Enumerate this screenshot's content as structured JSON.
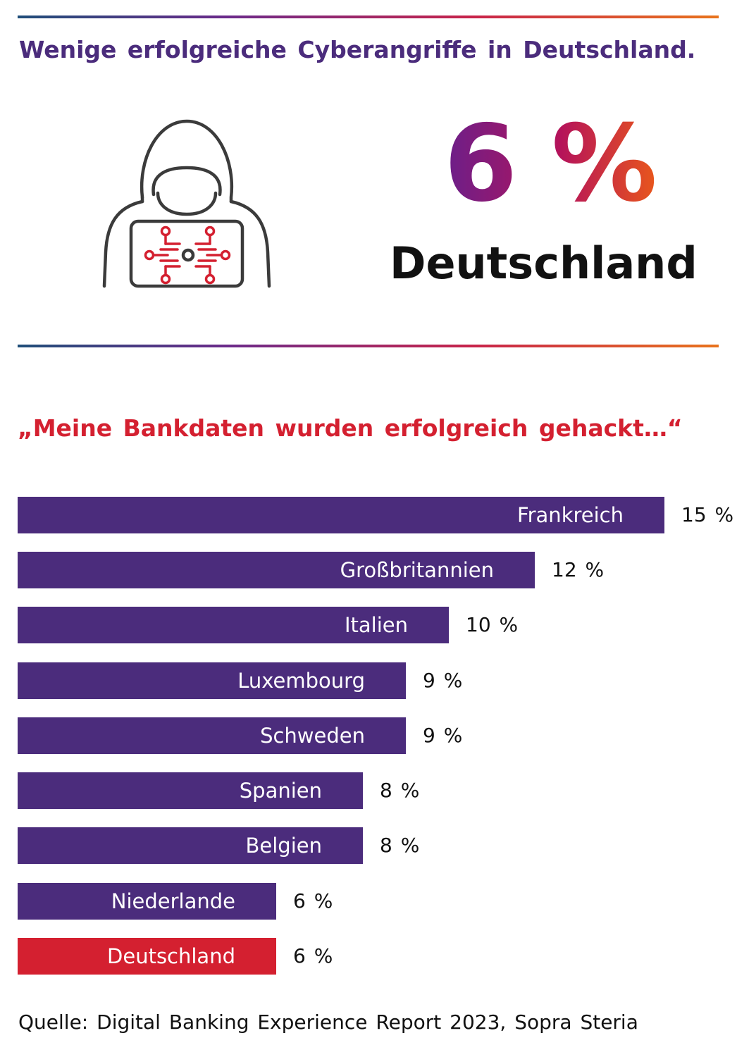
{
  "title": "Wenige erfolgreiche Cyberangriffe in Deutschland.",
  "headline": {
    "value": "6 %",
    "country": "Deutschland"
  },
  "icon": "hacker-with-circuit-laptop-icon",
  "quote": "„Meine Bankdaten wurden erfolgreich gehackt…“",
  "source": "Quelle: Digital Banking Experience Report 2023, Sopra Steria",
  "colors": {
    "bar": "#4b2c7c",
    "highlight": "#d42030",
    "title": "#4b2c7c",
    "quote": "#d42030"
  },
  "chart_data": {
    "type": "bar",
    "orientation": "horizontal",
    "unit": "%",
    "categories": [
      "Frankreich",
      "Großbritannien",
      "Italien",
      "Luxembourg",
      "Schweden",
      "Spanien",
      "Belgien",
      "Niederlande",
      "Deutschland"
    ],
    "values": [
      15,
      12,
      10,
      9,
      9,
      8,
      8,
      6,
      6
    ],
    "value_labels": [
      "15 %",
      "12 %",
      "10 %",
      "9 %",
      "9 %",
      "8 %",
      "8 %",
      "6 %",
      "6 %"
    ],
    "highlight": "Deutschland",
    "grid": false,
    "legend": "none"
  }
}
